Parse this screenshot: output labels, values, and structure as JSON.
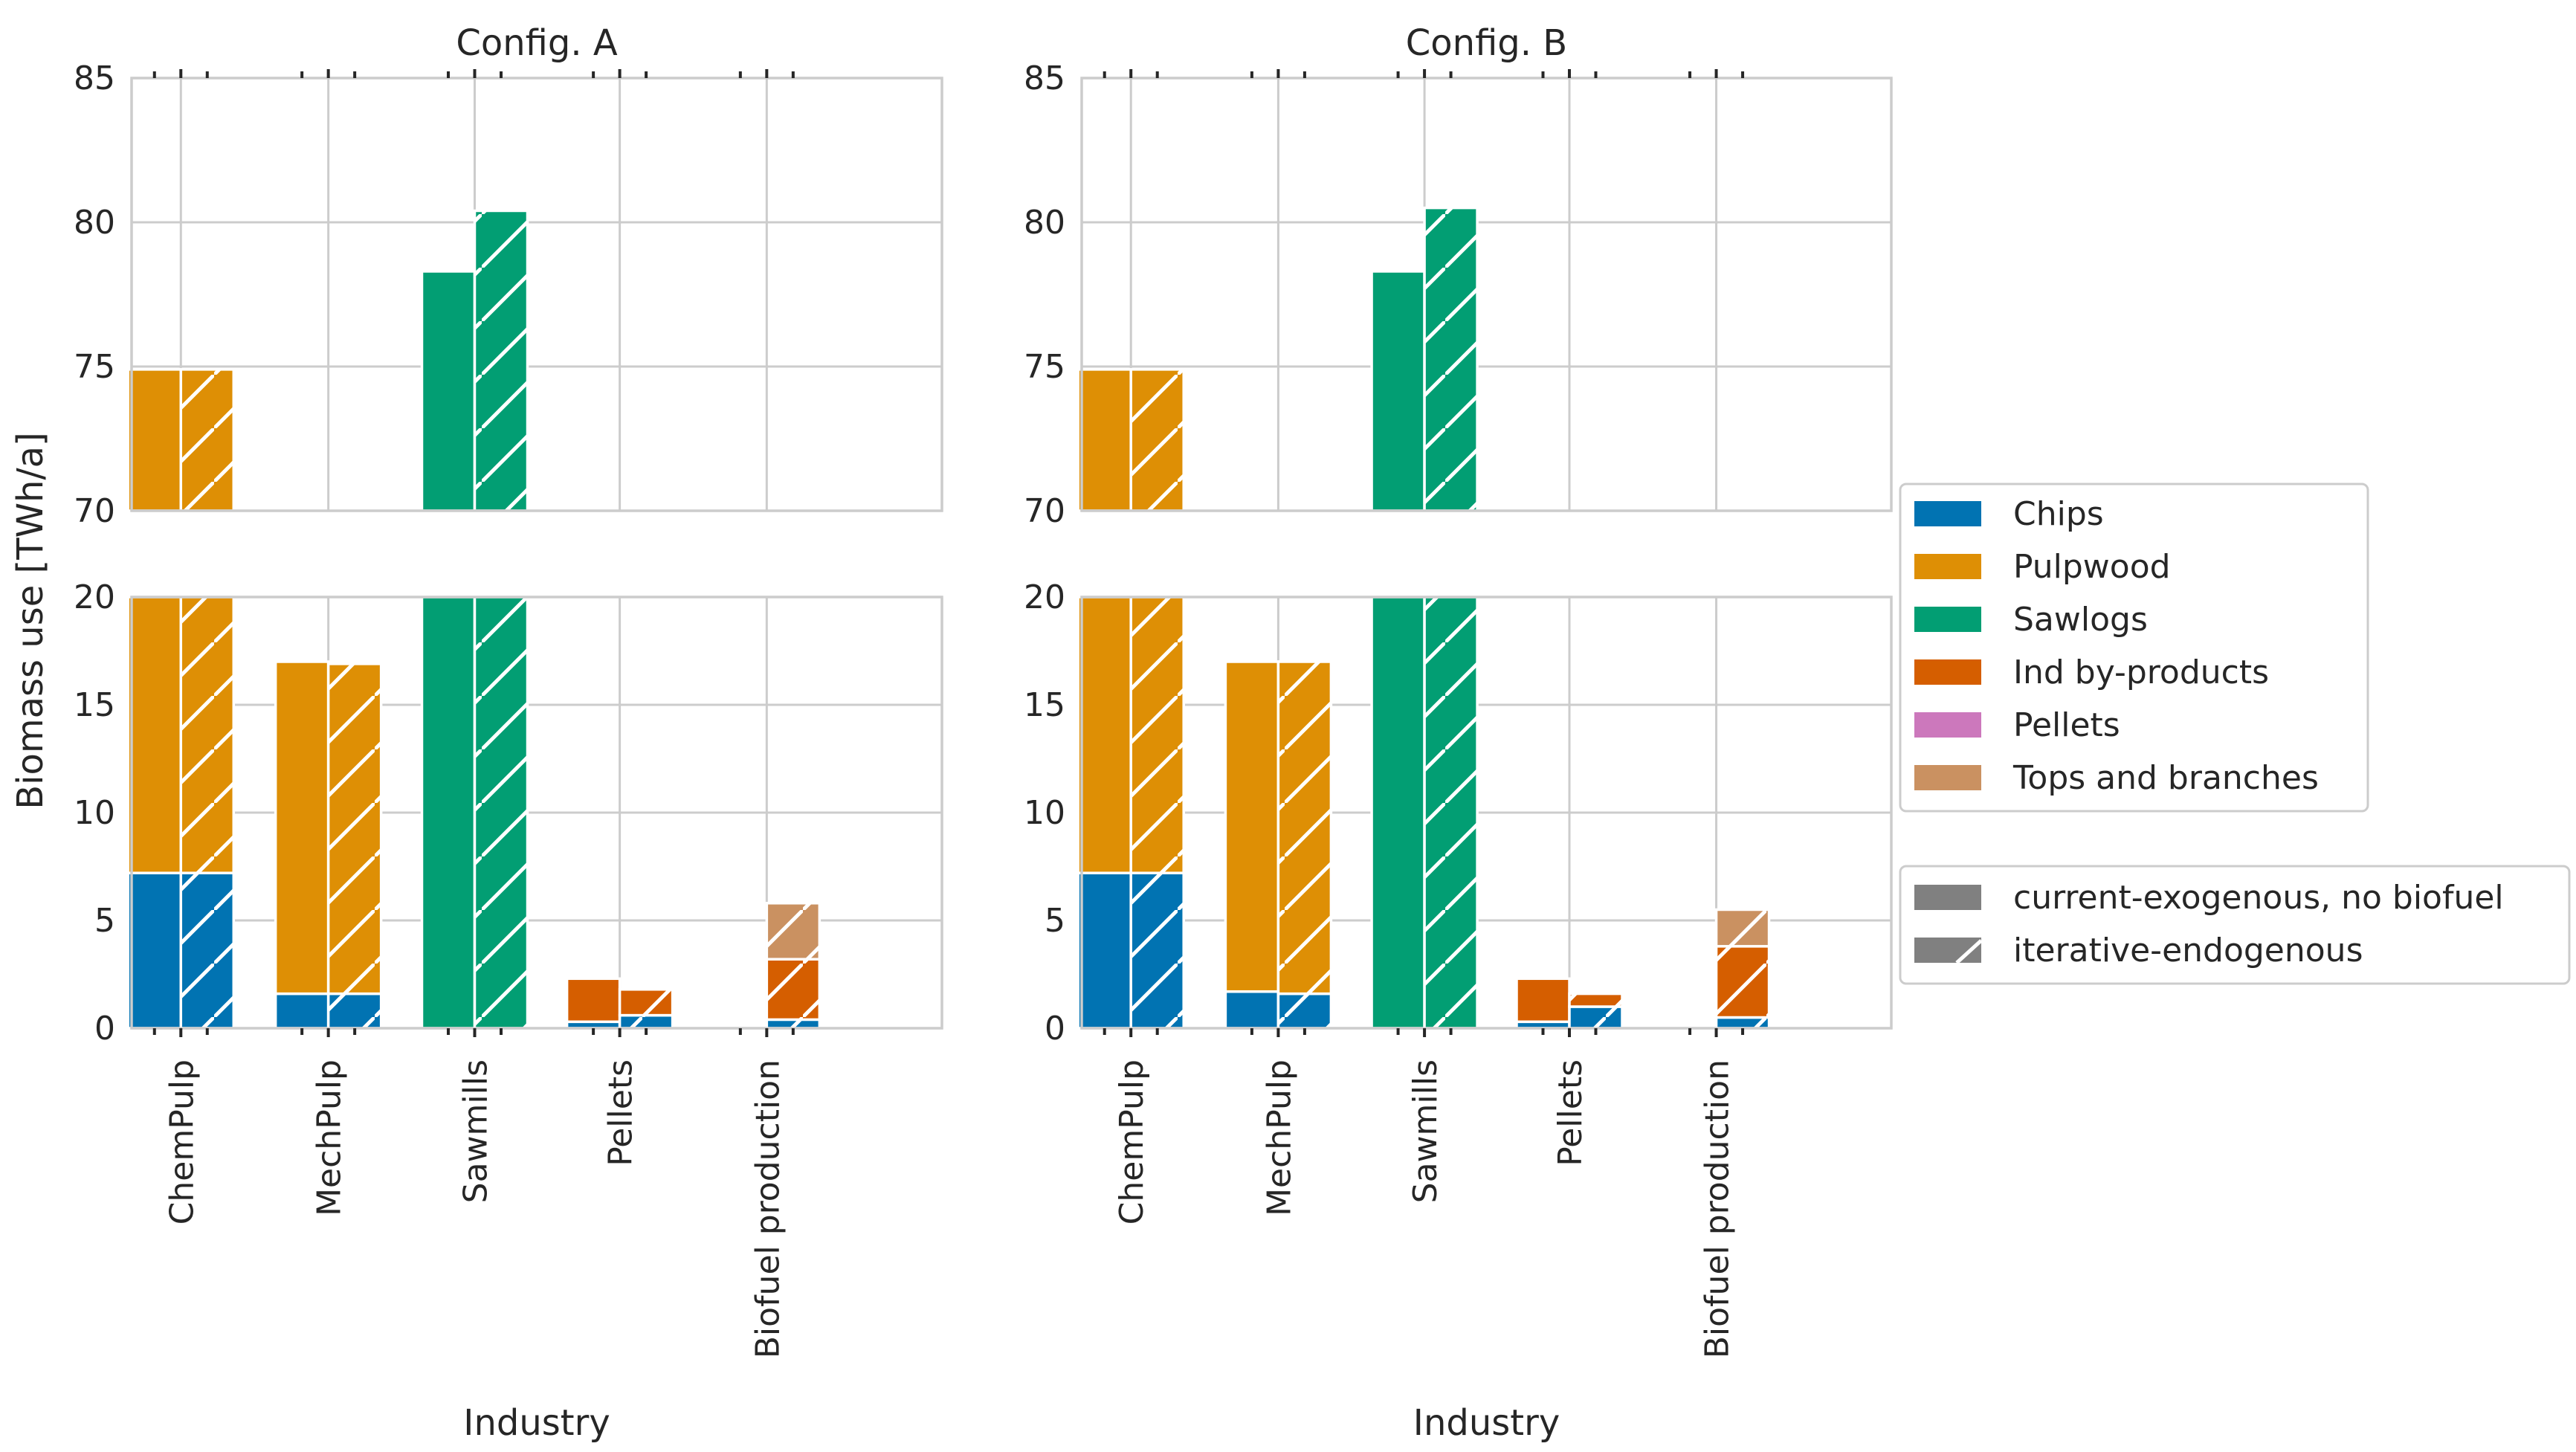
{
  "chart_data": {
    "type": "bar",
    "stacked": true,
    "broken_y_axis": true,
    "ylabel": "Biomass use [TWh/a]",
    "xlabel": "Industry",
    "categories": [
      "ChemPulp",
      "MechPulp",
      "Sawmills",
      "Pellets",
      "Biofuel production"
    ],
    "segments": [
      {
        "name": "Chips",
        "color": "#0173b2"
      },
      {
        "name": "Pulpwood",
        "color": "#de8f05"
      },
      {
        "name": "Sawlogs",
        "color": "#029e73"
      },
      {
        "name": "Ind by-products",
        "color": "#d55e00"
      },
      {
        "name": "Pellets",
        "color": "#cc78bc"
      },
      {
        "name": "Tops and branches",
        "color": "#ca9161"
      }
    ],
    "scenarios": [
      {
        "name": "current-exogenous, no biofuel",
        "hatch": "none"
      },
      {
        "name": "iterative-endogenous",
        "hatch": "diagonal"
      }
    ],
    "lower_ylim": [
      0,
      20
    ],
    "upper_ylim": [
      70,
      85
    ],
    "lower_yticks": [
      "0",
      "5",
      "10",
      "15",
      "20"
    ],
    "upper_yticks": [
      "70",
      "75",
      "80",
      "85"
    ],
    "grid": true,
    "legend_placement": "right",
    "panels": [
      {
        "title": "Config. A",
        "values": {
          "current-exogenous, no biofuel": {
            "ChemPulp": [
              7.2,
              67.7,
              0,
              0,
              0,
              0
            ],
            "MechPulp": [
              1.6,
              15.4,
              0,
              0,
              0,
              0
            ],
            "Sawmills": [
              0,
              0,
              78.3,
              0,
              0,
              0
            ],
            "Pellets": [
              0.3,
              0,
              0,
              2.0,
              0,
              0
            ],
            "Biofuel production": [
              0,
              0,
              0,
              0,
              0,
              0
            ]
          },
          "iterative-endogenous": {
            "ChemPulp": [
              7.2,
              67.7,
              0,
              0,
              0,
              0
            ],
            "MechPulp": [
              1.6,
              15.3,
              0,
              0,
              0,
              0
            ],
            "Sawmills": [
              0,
              0,
              80.4,
              0,
              0,
              0
            ],
            "Pellets": [
              0.6,
              0,
              0,
              1.2,
              0,
              0
            ],
            "Biofuel production": [
              0.4,
              0,
              0,
              2.8,
              0,
              2.6
            ]
          }
        }
      },
      {
        "title": "Config. B",
        "values": {
          "current-exogenous, no biofuel": {
            "ChemPulp": [
              7.2,
              67.7,
              0,
              0,
              0,
              0
            ],
            "MechPulp": [
              1.7,
              15.3,
              0,
              0,
              0,
              0
            ],
            "Sawmills": [
              0,
              0,
              78.3,
              0,
              0,
              0
            ],
            "Pellets": [
              0.3,
              0,
              0,
              2.0,
              0,
              0
            ],
            "Biofuel production": [
              0,
              0,
              0,
              0,
              0,
              0
            ]
          },
          "iterative-endogenous": {
            "ChemPulp": [
              7.2,
              67.7,
              0,
              0,
              0,
              0
            ],
            "MechPulp": [
              1.6,
              15.4,
              0,
              0,
              0,
              0
            ],
            "Sawmills": [
              0,
              0,
              80.5,
              0,
              0,
              0
            ],
            "Pellets": [
              1.0,
              0,
              0,
              0.6,
              0,
              0
            ],
            "Biofuel production": [
              0.5,
              0,
              0,
              3.3,
              0,
              1.7
            ]
          }
        }
      }
    ]
  }
}
